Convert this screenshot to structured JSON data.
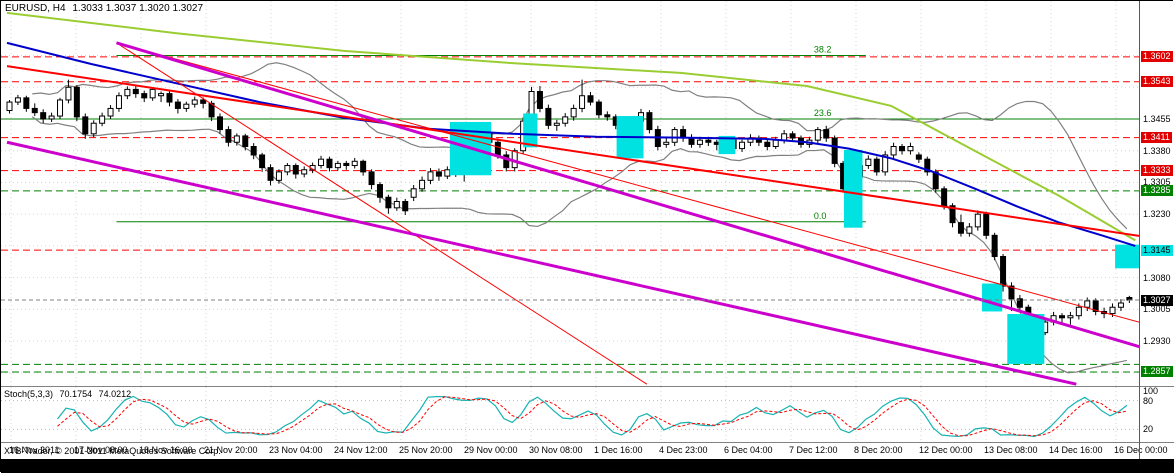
{
  "header": {
    "symbol": "EURUSD, H4",
    "ohlc": "1.3033 1.3037 1.3020 1.3027"
  },
  "footer": {
    "copyright": "XTB-Trader, © 2001-2011 MetaQuotes Software Corp."
  },
  "stoch_panel": {
    "name": "Stoch(5,3,3)",
    "value_main": "70.1754",
    "value_signal": "74.0212",
    "axis_labels": [
      100,
      80,
      20
    ],
    "levels": [
      80,
      20
    ],
    "range": [
      0,
      100
    ]
  },
  "x_axis": {
    "labels": [
      "16 Nov 2011",
      "17 Nov 08:00",
      "18 Nov 16:00",
      "21 Nov 20:00",
      "23 Nov 04:00",
      "24 Nov 12:00",
      "25 Nov 20:00",
      "29 Nov 00:00",
      "30 Nov 08:00",
      "1 Dec 16:00",
      "4 Dec 23:00",
      "6 Dec 04:00",
      "7 Dec 12:00",
      "8 Dec 20:00",
      "12 Dec 00:00",
      "13 Dec 08:00",
      "14 Dec 16:00",
      "16 Dec 00:00"
    ]
  },
  "price_axis": {
    "plain_labels": [
      "1.3455",
      "1.3380",
      "1.3305",
      "1.3230",
      "1.3080",
      "1.3005",
      "1.2930"
    ],
    "tags": [
      {
        "price": 1.3602,
        "label": "1.3602",
        "bg": "#e00000",
        "fg": "#ffffff",
        "name": "resistance-tag"
      },
      {
        "price": 1.3543,
        "label": "1.3543",
        "bg": "#e00000",
        "fg": "#ffffff",
        "name": "resistance-tag"
      },
      {
        "price": 1.3411,
        "label": "1.3411",
        "bg": "#e00000",
        "fg": "#ffffff",
        "name": "resistance-tag"
      },
      {
        "price": 1.3333,
        "label": "1.3333",
        "bg": "#e00000",
        "fg": "#ffffff",
        "name": "resistance-tag"
      },
      {
        "price": 1.3285,
        "label": "1.3285",
        "bg": "#008000",
        "fg": "#ffffff",
        "name": "support-tag"
      },
      {
        "price": 1.3145,
        "label": "1.3145",
        "bg": "#00e1e1",
        "fg": "#000000",
        "name": "highlight-tag"
      },
      {
        "price": 1.3027,
        "label": "1.3027",
        "bg": "#000000",
        "fg": "#ffffff",
        "name": "current-price-tag"
      },
      {
        "price": 1.2857,
        "label": "1.2857",
        "bg": "#008000",
        "fg": "#ffffff",
        "name": "support-tag"
      }
    ]
  },
  "colors": {
    "bull": "#ffffff",
    "bear": "#000000",
    "grid": "#d6d6d6",
    "highlight": "#00e1e1",
    "bollinger": "#808080",
    "level_red": "#ff0000",
    "level_green": "#008000",
    "stoch_main": "#19b3b3",
    "stoch_signal": "#ff0000",
    "bid_line": "#808080"
  },
  "chart_data": {
    "type": "candlestick+stochastic",
    "symbol": "EURUSD",
    "timeframe": "H4",
    "current": {
      "open": 1.3033,
      "high": 1.3037,
      "low": 1.302,
      "close": 1.3027
    },
    "y_range": [
      1.2828,
      1.3712
    ],
    "grid_prices": [
      1.3605,
      1.353,
      1.3455,
      1.338,
      1.3305,
      1.323,
      1.3155,
      1.308,
      1.3005,
      1.293,
      1.2855
    ],
    "candles": [
      [
        1.3475,
        1.35,
        1.3468,
        1.3495
      ],
      [
        1.3495,
        1.3512,
        1.3488,
        1.3505
      ],
      [
        1.3505,
        1.351,
        1.3472,
        1.348
      ],
      [
        1.348,
        1.3492,
        1.3462,
        1.347
      ],
      [
        1.347,
        1.3478,
        1.3445,
        1.3455
      ],
      [
        1.3455,
        1.347,
        1.3448,
        1.3462
      ],
      [
        1.3462,
        1.3505,
        1.3455,
        1.35
      ],
      [
        1.35,
        1.3548,
        1.3492,
        1.353
      ],
      [
        1.353,
        1.3535,
        1.345,
        1.346
      ],
      [
        1.346,
        1.3468,
        1.3408,
        1.342
      ],
      [
        1.342,
        1.3452,
        1.3412,
        1.3445
      ],
      [
        1.3445,
        1.347,
        1.3438,
        1.3462
      ],
      [
        1.3462,
        1.3488,
        1.3455,
        1.348
      ],
      [
        1.348,
        1.3518,
        1.3472,
        1.351
      ],
      [
        1.351,
        1.3532,
        1.3502,
        1.3525
      ],
      [
        1.3525,
        1.3535,
        1.3505,
        1.3515
      ],
      [
        1.3515,
        1.3522,
        1.3495,
        1.3505
      ],
      [
        1.3505,
        1.353,
        1.3498,
        1.3525
      ],
      [
        1.351,
        1.352,
        1.3495,
        1.3515
      ],
      [
        1.3515,
        1.3522,
        1.3485,
        1.3495
      ],
      [
        1.3495,
        1.3502,
        1.3468,
        1.348
      ],
      [
        1.348,
        1.3496,
        1.3472,
        1.349
      ],
      [
        1.349,
        1.3508,
        1.3482,
        1.35
      ],
      [
        1.35,
        1.3506,
        1.348,
        1.3492
      ],
      [
        1.3492,
        1.3498,
        1.345,
        1.346
      ],
      [
        1.346,
        1.3468,
        1.342,
        1.343
      ],
      [
        1.343,
        1.3438,
        1.339,
        1.34
      ],
      [
        1.34,
        1.3421,
        1.3392,
        1.3415
      ],
      [
        1.3415,
        1.342,
        1.3381,
        1.339
      ],
      [
        1.339,
        1.3398,
        1.336,
        1.337
      ],
      [
        1.337,
        1.3375,
        1.333,
        1.334
      ],
      [
        1.334,
        1.3348,
        1.3298,
        1.331
      ],
      [
        1.331,
        1.3336,
        1.3302,
        1.333
      ],
      [
        1.333,
        1.3351,
        1.3322,
        1.3345
      ],
      [
        1.3345,
        1.335,
        1.3314,
        1.3325
      ],
      [
        1.3325,
        1.3343,
        1.3317,
        1.3335
      ],
      [
        1.3335,
        1.3352,
        1.3327,
        1.3345
      ],
      [
        1.3345,
        1.3368,
        1.3338,
        1.336
      ],
      [
        1.336,
        1.3366,
        1.3331,
        1.334
      ],
      [
        1.334,
        1.3356,
        1.3333,
        1.335
      ],
      [
        1.335,
        1.3356,
        1.3335,
        1.3345
      ],
      [
        1.3345,
        1.3363,
        1.3338,
        1.3355
      ],
      [
        1.3355,
        1.3359,
        1.3321,
        1.333
      ],
      [
        1.333,
        1.3336,
        1.3289,
        1.33
      ],
      [
        1.33,
        1.3306,
        1.3257,
        1.327
      ],
      [
        1.327,
        1.3276,
        1.3231,
        1.3245
      ],
      [
        1.3245,
        1.3269,
        1.3238,
        1.326
      ],
      [
        1.326,
        1.3266,
        1.3228,
        1.3238
      ],
      [
        1.327,
        1.3299,
        1.3261,
        1.329
      ],
      [
        1.329,
        1.3319,
        1.3283,
        1.331
      ],
      [
        1.331,
        1.3339,
        1.3301,
        1.333
      ],
      [
        1.333,
        1.3338,
        1.3309,
        1.332
      ],
      [
        1.332,
        1.3343,
        1.3313,
        1.3335
      ],
      [
        1.3335,
        1.3342,
        1.3318,
        1.333
      ],
      [
        1.333,
        1.3341,
        1.3307,
        1.3332
      ],
      [
        1.3332,
        1.3389,
        1.3324,
        1.338
      ],
      [
        1.338,
        1.3429,
        1.3371,
        1.342
      ],
      [
        1.342,
        1.3443,
        1.3394,
        1.34
      ],
      [
        1.34,
        1.3409,
        1.3361,
        1.337
      ],
      [
        1.337,
        1.3379,
        1.3331,
        1.334
      ],
      [
        1.334,
        1.3386,
        1.3331,
        1.338
      ],
      [
        1.338,
        1.3459,
        1.3372,
        1.345
      ],
      [
        1.345,
        1.3531,
        1.3441,
        1.352
      ],
      [
        1.352,
        1.3533,
        1.3471,
        1.348
      ],
      [
        1.348,
        1.3489,
        1.3431,
        1.344
      ],
      [
        1.344,
        1.3453,
        1.3427,
        1.3445
      ],
      [
        1.3445,
        1.3469,
        1.3437,
        1.346
      ],
      [
        1.346,
        1.3489,
        1.3451,
        1.348
      ],
      [
        1.348,
        1.3548,
        1.3471,
        1.351
      ],
      [
        1.351,
        1.3519,
        1.3487,
        1.3495
      ],
      [
        1.3495,
        1.3501,
        1.3457,
        1.3465
      ],
      [
        1.3465,
        1.3473,
        1.3451,
        1.346
      ],
      [
        1.346,
        1.3466,
        1.3431,
        1.344
      ],
      [
        1.344,
        1.3449,
        1.3411,
        1.342
      ],
      [
        1.342,
        1.3456,
        1.3412,
        1.345
      ],
      [
        1.345,
        1.3479,
        1.3441,
        1.347
      ],
      [
        1.347,
        1.3476,
        1.3421,
        1.343
      ],
      [
        1.343,
        1.3439,
        1.3381,
        1.339
      ],
      [
        1.3395,
        1.3409,
        1.3387,
        1.34
      ],
      [
        1.34,
        1.3436,
        1.3391,
        1.343
      ],
      [
        1.343,
        1.3439,
        1.3401,
        1.341
      ],
      [
        1.341,
        1.3419,
        1.3387,
        1.3395
      ],
      [
        1.3395,
        1.3413,
        1.3387,
        1.3405
      ],
      [
        1.3405,
        1.3413,
        1.3391,
        1.34
      ],
      [
        1.34,
        1.3406,
        1.3381,
        1.3395
      ],
      [
        1.3395,
        1.3413,
        1.3387,
        1.3405
      ],
      [
        1.3405,
        1.3411,
        1.3377,
        1.3385
      ],
      [
        1.3385,
        1.3406,
        1.3377,
        1.34
      ],
      [
        1.34,
        1.3419,
        1.3391,
        1.341
      ],
      [
        1.341,
        1.3416,
        1.3391,
        1.34
      ],
      [
        1.34,
        1.3409,
        1.3381,
        1.339
      ],
      [
        1.339,
        1.3413,
        1.3384,
        1.3405
      ],
      [
        1.3405,
        1.3429,
        1.3397,
        1.342
      ],
      [
        1.342,
        1.3426,
        1.3401,
        1.341
      ],
      [
        1.341,
        1.3416,
        1.3387,
        1.3395
      ],
      [
        1.3395,
        1.3413,
        1.3387,
        1.3405
      ],
      [
        1.3405,
        1.3436,
        1.3397,
        1.343
      ],
      [
        1.343,
        1.3439,
        1.3401,
        1.341
      ],
      [
        1.341,
        1.3416,
        1.3341,
        1.335
      ],
      [
        1.335,
        1.3356,
        1.3281,
        1.329
      ],
      [
        1.329,
        1.3329,
        1.3281,
        1.332
      ],
      [
        1.332,
        1.3353,
        1.3311,
        1.3345
      ],
      [
        1.3345,
        1.3369,
        1.3337,
        1.336
      ],
      [
        1.336,
        1.3366,
        1.3321,
        1.333
      ],
      [
        1.333,
        1.3379,
        1.3321,
        1.337
      ],
      [
        1.337,
        1.3399,
        1.3361,
        1.339
      ],
      [
        1.339,
        1.3396,
        1.3371,
        1.338
      ],
      [
        1.338,
        1.3399,
        1.3371,
        1.339
      ],
      [
        1.337,
        1.3376,
        1.3351,
        1.336
      ],
      [
        1.336,
        1.3366,
        1.3321,
        1.333
      ],
      [
        1.333,
        1.3336,
        1.3281,
        1.329
      ],
      [
        1.329,
        1.3296,
        1.3241,
        1.325
      ],
      [
        1.325,
        1.3256,
        1.3199,
        1.321
      ],
      [
        1.321,
        1.3229,
        1.3177,
        1.3185
      ],
      [
        1.3185,
        1.3209,
        1.3177,
        1.32
      ],
      [
        1.32,
        1.3239,
        1.3191,
        1.323
      ],
      [
        1.323,
        1.3236,
        1.3171,
        1.318
      ],
      [
        1.318,
        1.3186,
        1.3121,
        1.313
      ],
      [
        1.313,
        1.3136,
        1.3047,
        1.306
      ],
      [
        1.306,
        1.3069,
        1.3001,
        1.303
      ],
      [
        1.303,
        1.3039,
        1.2999,
        1.301
      ],
      [
        1.301,
        1.3016,
        1.2967,
        1.298
      ],
      [
        1.298,
        1.2986,
        1.2941,
        1.295
      ],
      [
        1.295,
        1.2983,
        1.2944,
        1.2975
      ],
      [
        1.2975,
        1.2999,
        1.2967,
        1.299
      ],
      [
        1.299,
        1.2996,
        1.2971,
        1.2985
      ],
      [
        1.2985,
        1.2999,
        1.2969,
        1.299
      ],
      [
        1.299,
        1.3019,
        1.2981,
        1.301
      ],
      [
        1.301,
        1.3033,
        1.3001,
        1.3025
      ],
      [
        1.3025,
        1.3031,
        1.2991,
        1.3
      ],
      [
        1.3,
        1.3009,
        1.2984,
        1.2995
      ],
      [
        1.2995,
        1.3019,
        1.2987,
        1.301
      ],
      [
        1.301,
        1.3029,
        1.3001,
        1.302
      ],
      [
        1.3033,
        1.3037,
        1.302,
        1.3027
      ]
    ],
    "levels": {
      "red_dashed": [
        1.3602,
        1.3543,
        1.3411,
        1.3333,
        1.3145
      ],
      "green_dashed": [
        1.3285,
        1.2875,
        1.2857
      ],
      "green_solid": [
        1.3455
      ],
      "current_price": 1.3027
    },
    "fibonacci": {
      "levels": [
        {
          "label": "38.2",
          "price": 1.3605,
          "span": [
            13,
            102
          ]
        },
        {
          "label": "23.6",
          "price": 1.3455,
          "span": [
            0,
            135
          ]
        },
        {
          "label": "0.0",
          "price": 1.3212,
          "span": [
            13,
            102
          ]
        }
      ]
    },
    "trendlines": [
      {
        "name": "downtrend-magenta-steep",
        "color": "#cc00cc",
        "width": 3,
        "from": [
          13,
          1.3635
        ],
        "to": [
          139,
          1.289
        ]
      },
      {
        "name": "downtrend-magenta-shallow",
        "color": "#cc00cc",
        "width": 3,
        "from": [
          0,
          1.34
        ],
        "to": [
          127,
          1.2828
        ]
      },
      {
        "name": "downtrend-red-major",
        "color": "#ff0000",
        "width": 2,
        "from": [
          0,
          1.358
        ],
        "to": [
          139,
          1.3165
        ]
      },
      {
        "name": "downtrend-red-steep",
        "color": "#ff0000",
        "width": 1,
        "from": [
          13,
          1.3635
        ],
        "to": [
          76,
          1.2828
        ]
      },
      {
        "name": "downtrend-red-mid",
        "color": "#ff0000",
        "width": 1,
        "from": [
          13,
          1.3635
        ],
        "to": [
          139,
          1.295
        ]
      }
    ],
    "moving_averages": [
      {
        "name": "ma-blue",
        "color": "#0000cc",
        "width": 2,
        "points": [
          [
            0,
            1.3635
          ],
          [
            10,
            1.3585
          ],
          [
            20,
            1.354
          ],
          [
            30,
            1.3495
          ],
          [
            40,
            1.3458
          ],
          [
            50,
            1.3432
          ],
          [
            60,
            1.342
          ],
          [
            70,
            1.3413
          ],
          [
            80,
            1.3411
          ],
          [
            90,
            1.3408
          ],
          [
            95,
            1.34
          ],
          [
            100,
            1.3385
          ],
          [
            105,
            1.3362
          ],
          [
            110,
            1.333
          ],
          [
            115,
            1.329
          ],
          [
            120,
            1.3248
          ],
          [
            125,
            1.321
          ],
          [
            130,
            1.318
          ],
          [
            134,
            1.3155
          ]
        ]
      },
      {
        "name": "ma-chartreuse",
        "color": "#9acd32",
        "width": 2,
        "points": [
          [
            0,
            1.3706
          ],
          [
            20,
            1.3658
          ],
          [
            40,
            1.3616
          ],
          [
            60,
            1.3587
          ],
          [
            80,
            1.3564
          ],
          [
            95,
            1.3533
          ],
          [
            105,
            1.3486
          ],
          [
            115,
            1.3379
          ],
          [
            125,
            1.3273
          ],
          [
            134,
            1.3168
          ]
        ]
      }
    ],
    "bollinger": {
      "period": 20,
      "deviation": 2
    },
    "highlights": [
      {
        "from": 52.6,
        "to": 57.5,
        "top": 1.3448,
        "bottom": 1.3322
      },
      {
        "from": 61.3,
        "to": 63.0,
        "top": 1.3468,
        "bottom": 1.3388
      },
      {
        "from": 72.4,
        "to": 75.6,
        "top": 1.3462,
        "bottom": 1.3362
      },
      {
        "from": 84.5,
        "to": 86.5,
        "top": 1.3415,
        "bottom": 1.3372
      },
      {
        "from": 99.4,
        "to": 101.6,
        "top": 1.3382,
        "bottom": 1.3198
      },
      {
        "from": 115.8,
        "to": 118.2,
        "top": 1.3066,
        "bottom": 1.3
      },
      {
        "from": 118.8,
        "to": 123.2,
        "top": 1.2994,
        "bottom": 1.2876
      },
      {
        "from": 131.6,
        "to": 135.0,
        "top": 1.3158,
        "bottom": 1.3102
      }
    ],
    "stochastic": {
      "k_period": 5,
      "slowing": 3,
      "d_period": 3,
      "main": 70.1754,
      "signal": 74.0212
    }
  }
}
